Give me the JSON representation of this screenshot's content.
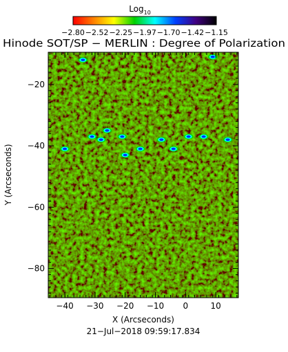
{
  "colorbar": {
    "label": "Log",
    "label_sub": "10",
    "tick_labels": [
      "−2.80",
      "−2.52",
      "−2.25",
      "−1.97",
      "−1.70",
      "−1.42",
      "−1.15"
    ],
    "range": [
      -2.8,
      -1.15
    ],
    "colormap": [
      "#ff0000",
      "#ff8000",
      "#ffff00",
      "#00d000",
      "#00ffff",
      "#0040ff",
      "#400080",
      "#000000"
    ]
  },
  "chart_data": {
    "type": "heatmap",
    "title": "Hinode SOT/SP − MERLIN : Degree of Polarization",
    "xlabel": "X (Arcseconds)",
    "ylabel": "Y (Arcseconds)",
    "xlim": [
      -45.5,
      17.5
    ],
    "ylim": [
      -89.5,
      -9.5
    ],
    "x_ticks": [
      -40,
      -30,
      -20,
      -10,
      0,
      10
    ],
    "y_ticks": [
      -80,
      -60,
      -40,
      -20
    ],
    "x_tick_labels": [
      "−40",
      "−30",
      "−20",
      "−10",
      "0",
      "10"
    ],
    "y_tick_labels": [
      "−80",
      "−60",
      "−40",
      "−20"
    ],
    "value_scale": "log10",
    "description_of_field": "mostly red/orange background with strongly polarized network elements along a band near Y = −38",
    "strong_features": [
      {
        "x": -31,
        "y": -37
      },
      {
        "x": -28,
        "y": -38
      },
      {
        "x": -26,
        "y": -35
      },
      {
        "x": -21,
        "y": -37
      },
      {
        "x": -15,
        "y": -41
      },
      {
        "x": -8,
        "y": -38
      },
      {
        "x": -4,
        "y": -41
      },
      {
        "x": 1,
        "y": -37
      },
      {
        "x": 6,
        "y": -37
      },
      {
        "x": 14,
        "y": -38
      },
      {
        "x": -40,
        "y": -41
      },
      {
        "x": -34,
        "y": -12
      },
      {
        "x": 9,
        "y": -11
      },
      {
        "x": -20,
        "y": -43
      }
    ],
    "timestamp": "21−Jul−2018 09:59:17.834",
    "grid": false
  }
}
